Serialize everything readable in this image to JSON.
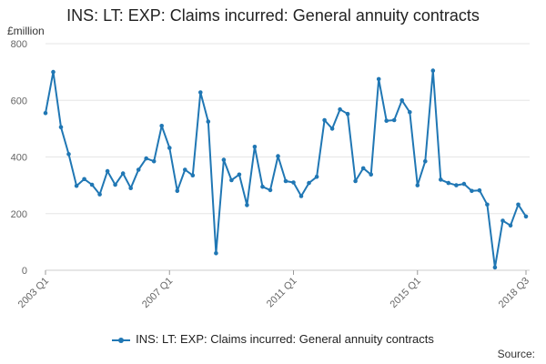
{
  "chart_data": {
    "type": "line",
    "title": "INS: LT: EXP: Claims incurred: General annuity contracts",
    "unit_label": "£million",
    "source_label": "Source:",
    "ylim": [
      0,
      800
    ],
    "y_ticks": [
      0,
      200,
      400,
      600,
      800
    ],
    "x_start": "2003 Q1",
    "x_tick_labels": [
      "2003 Q1",
      "2007 Q1",
      "2011 Q1",
      "2015 Q1",
      "2018 Q3"
    ],
    "x_tick_indices": [
      0,
      16,
      32,
      48,
      62
    ],
    "grid": true,
    "legend_position": "bottom",
    "color": "#2077b4",
    "series": [
      {
        "name": "INS: LT: EXP: Claims incurred: General annuity contracts",
        "values": [
          555,
          700,
          505,
          410,
          298,
          322,
          302,
          268,
          350,
          302,
          342,
          290,
          355,
          395,
          385,
          510,
          432,
          280,
          355,
          335,
          628,
          525,
          60,
          390,
          318,
          338,
          230,
          436,
          295,
          283,
          403,
          315,
          310,
          262,
          308,
          330,
          530,
          500,
          568,
          552,
          315,
          360,
          338,
          675,
          528,
          530,
          600,
          558,
          300,
          385,
          705,
          320,
          308,
          300,
          305,
          280,
          282,
          232,
          10,
          175,
          158,
          232,
          190
        ]
      }
    ]
  }
}
